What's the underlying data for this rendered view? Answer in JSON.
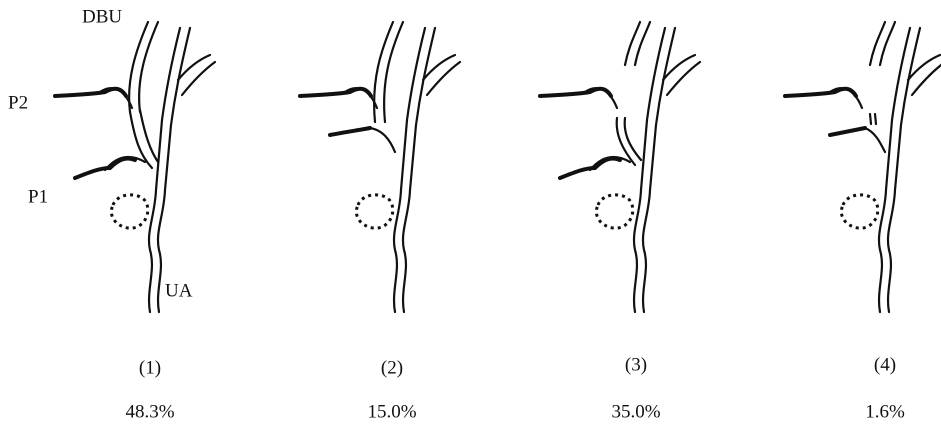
{
  "labels": {
    "dbu": "DBU",
    "p2": "P2",
    "p1": "P1",
    "ua": "UA"
  },
  "panels": [
    {
      "label": "(1)",
      "percent": "48.3%"
    },
    {
      "label": "(2)",
      "percent": "15.0%"
    },
    {
      "label": "(3)",
      "percent": "35.0%"
    },
    {
      "label": "(4)",
      "percent": "1.6%"
    }
  ]
}
